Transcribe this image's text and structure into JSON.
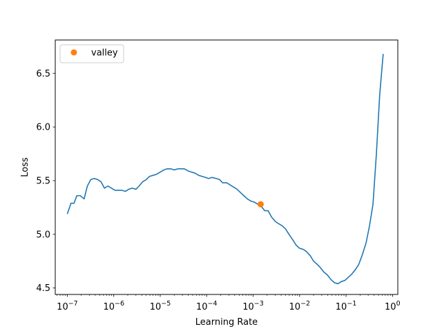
{
  "chart_data": {
    "type": "line",
    "title": "",
    "xlabel": "Learning Rate",
    "ylabel": "Loss",
    "xscale": "log",
    "xlim": [
      5.5e-08,
      1.3
    ],
    "ylim": [
      4.44,
      6.81
    ],
    "grid": false,
    "legend": {
      "placement": "top-left",
      "entries": [
        "valley"
      ]
    },
    "colors": {
      "loss_line": "#1f77b4",
      "valley_marker": "#ff7f0e",
      "axes": "#000000"
    },
    "x_ticks": [
      {
        "value": 1e-07,
        "base": "10",
        "exp": "−7"
      },
      {
        "value": 1e-06,
        "base": "10",
        "exp": "−6"
      },
      {
        "value": 1e-05,
        "base": "10",
        "exp": "−5"
      },
      {
        "value": 0.0001,
        "base": "10",
        "exp": "−4"
      },
      {
        "value": 0.001,
        "base": "10",
        "exp": "−3"
      },
      {
        "value": 0.01,
        "base": "10",
        "exp": "−2"
      },
      {
        "value": 0.1,
        "base": "10",
        "exp": "−1"
      },
      {
        "value": 1,
        "base": "10",
        "exp": "0"
      }
    ],
    "y_ticks": [
      {
        "value": 4.5,
        "label": "4.5"
      },
      {
        "value": 5.0,
        "label": "5.0"
      },
      {
        "value": 5.5,
        "label": "5.5"
      },
      {
        "value": 6.0,
        "label": "6.0"
      },
      {
        "value": 6.5,
        "label": "6.5"
      }
    ],
    "series": [
      {
        "x": [
          1e-07,
          1.2e-07,
          1.4e-07,
          1.6e-07,
          1.9e-07,
          2.3e-07,
          2.7e-07,
          3.2e-07,
          3.8e-07,
          4.5e-07,
          5.3e-07,
          6.3e-07,
          7.5e-07,
          8.9e-07,
          1.06e-06,
          1.26e-06,
          1.5e-06,
          1.78e-06,
          2.1e-06,
          2.5e-06,
          3e-06,
          3.5e-06,
          4.2e-06,
          5e-06,
          5.9e-06,
          7.1e-06,
          8.4e-06,
          1e-05,
          1.2e-05,
          1.4e-05,
          1.7e-05,
          2e-05,
          2.4e-05,
          2.8e-05,
          3.3e-05,
          4e-05,
          4.7e-05,
          5.6e-05,
          6.7e-05,
          7.9e-05,
          9.4e-05,
          0.00011,
          0.00013,
          0.00016,
          0.00019,
          0.00022,
          0.00027,
          0.00032,
          0.00038,
          0.00045,
          0.00053,
          0.00063,
          0.00075,
          0.00089,
          0.00106,
          0.00126,
          0.0015,
          0.00178,
          0.0021,
          0.0025,
          0.003,
          0.0035,
          0.0042,
          0.005,
          0.0059,
          0.0071,
          0.0084,
          0.01,
          0.012,
          0.014,
          0.017,
          0.02,
          0.024,
          0.028,
          0.033,
          0.04,
          0.047,
          0.056,
          0.067,
          0.079,
          0.094,
          0.112,
          0.133,
          0.158,
          0.188,
          0.22,
          0.27,
          0.32,
          0.38,
          0.45,
          0.53,
          0.63
        ],
        "y": [
          5.19,
          5.29,
          5.29,
          5.36,
          5.36,
          5.33,
          5.45,
          5.51,
          5.52,
          5.51,
          5.49,
          5.43,
          5.45,
          5.43,
          5.41,
          5.41,
          5.41,
          5.4,
          5.42,
          5.43,
          5.42,
          5.45,
          5.49,
          5.51,
          5.54,
          5.55,
          5.56,
          5.58,
          5.6,
          5.61,
          5.61,
          5.6,
          5.61,
          5.61,
          5.61,
          5.59,
          5.58,
          5.57,
          5.55,
          5.54,
          5.53,
          5.52,
          5.53,
          5.52,
          5.51,
          5.48,
          5.48,
          5.46,
          5.44,
          5.42,
          5.39,
          5.36,
          5.33,
          5.31,
          5.3,
          5.28,
          5.26,
          5.22,
          5.22,
          5.16,
          5.12,
          5.1,
          5.08,
          5.05,
          5.0,
          4.95,
          4.9,
          4.87,
          4.86,
          4.84,
          4.8,
          4.75,
          4.72,
          4.69,
          4.65,
          4.62,
          4.58,
          4.55,
          4.54,
          4.56,
          4.57,
          4.6,
          4.63,
          4.67,
          4.72,
          4.8,
          4.92,
          5.08,
          5.28,
          5.75,
          6.3,
          6.68
        ]
      }
    ],
    "valley": {
      "label": "valley",
      "x": 0.00145,
      "y": 5.28
    }
  }
}
